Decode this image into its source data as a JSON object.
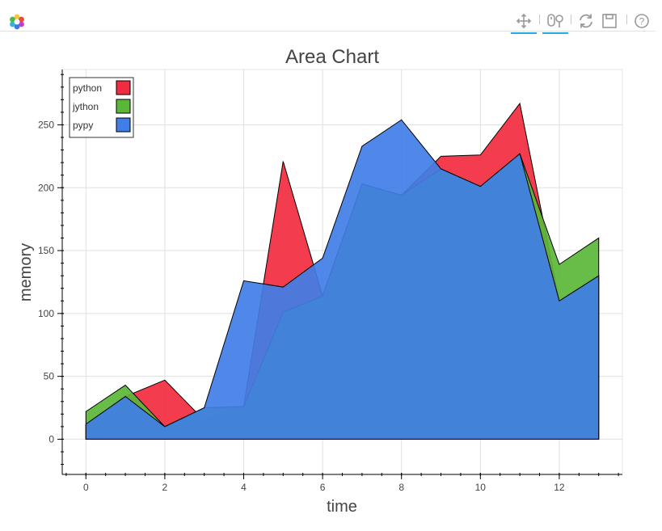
{
  "toolbar": {
    "logo": "bokeh-logo-icon",
    "tools": [
      {
        "name": "pan-icon",
        "active": true
      },
      {
        "name": "wheel-zoom-icon",
        "active": true
      },
      {
        "name": "reset-icon",
        "active": false
      },
      {
        "name": "save-icon",
        "active": false
      },
      {
        "name": "help-icon",
        "active": false
      }
    ]
  },
  "chart_data": {
    "type": "area",
    "title": "Area Chart",
    "xlabel": "time",
    "ylabel": "memory",
    "xlim": [
      -0.6,
      13.6
    ],
    "ylim": [
      -28,
      294
    ],
    "xticks": [
      0,
      2,
      4,
      6,
      8,
      10,
      12
    ],
    "yticks": [
      0,
      50,
      100,
      150,
      200,
      250
    ],
    "grid": true,
    "legend_position": "top-left",
    "x": [
      0,
      1,
      2,
      3,
      4,
      5,
      6,
      7,
      8,
      9,
      10,
      11,
      12,
      13
    ],
    "series": [
      {
        "name": "python",
        "color": "#f22c40",
        "values": [
          12,
          34,
          47,
          15,
          26,
          221,
          114,
          203,
          194,
          225,
          226,
          267,
          110,
          130
        ]
      },
      {
        "name": "jython",
        "color": "#5ab738",
        "values": [
          22,
          43,
          10,
          25,
          26,
          101,
          114,
          203,
          194,
          215,
          201,
          227,
          139,
          160
        ]
      },
      {
        "name": "pypy",
        "color": "#407ee7",
        "values": [
          12,
          34,
          10,
          25,
          126,
          121,
          144,
          233,
          254,
          215,
          201,
          227,
          110,
          130
        ]
      }
    ]
  }
}
